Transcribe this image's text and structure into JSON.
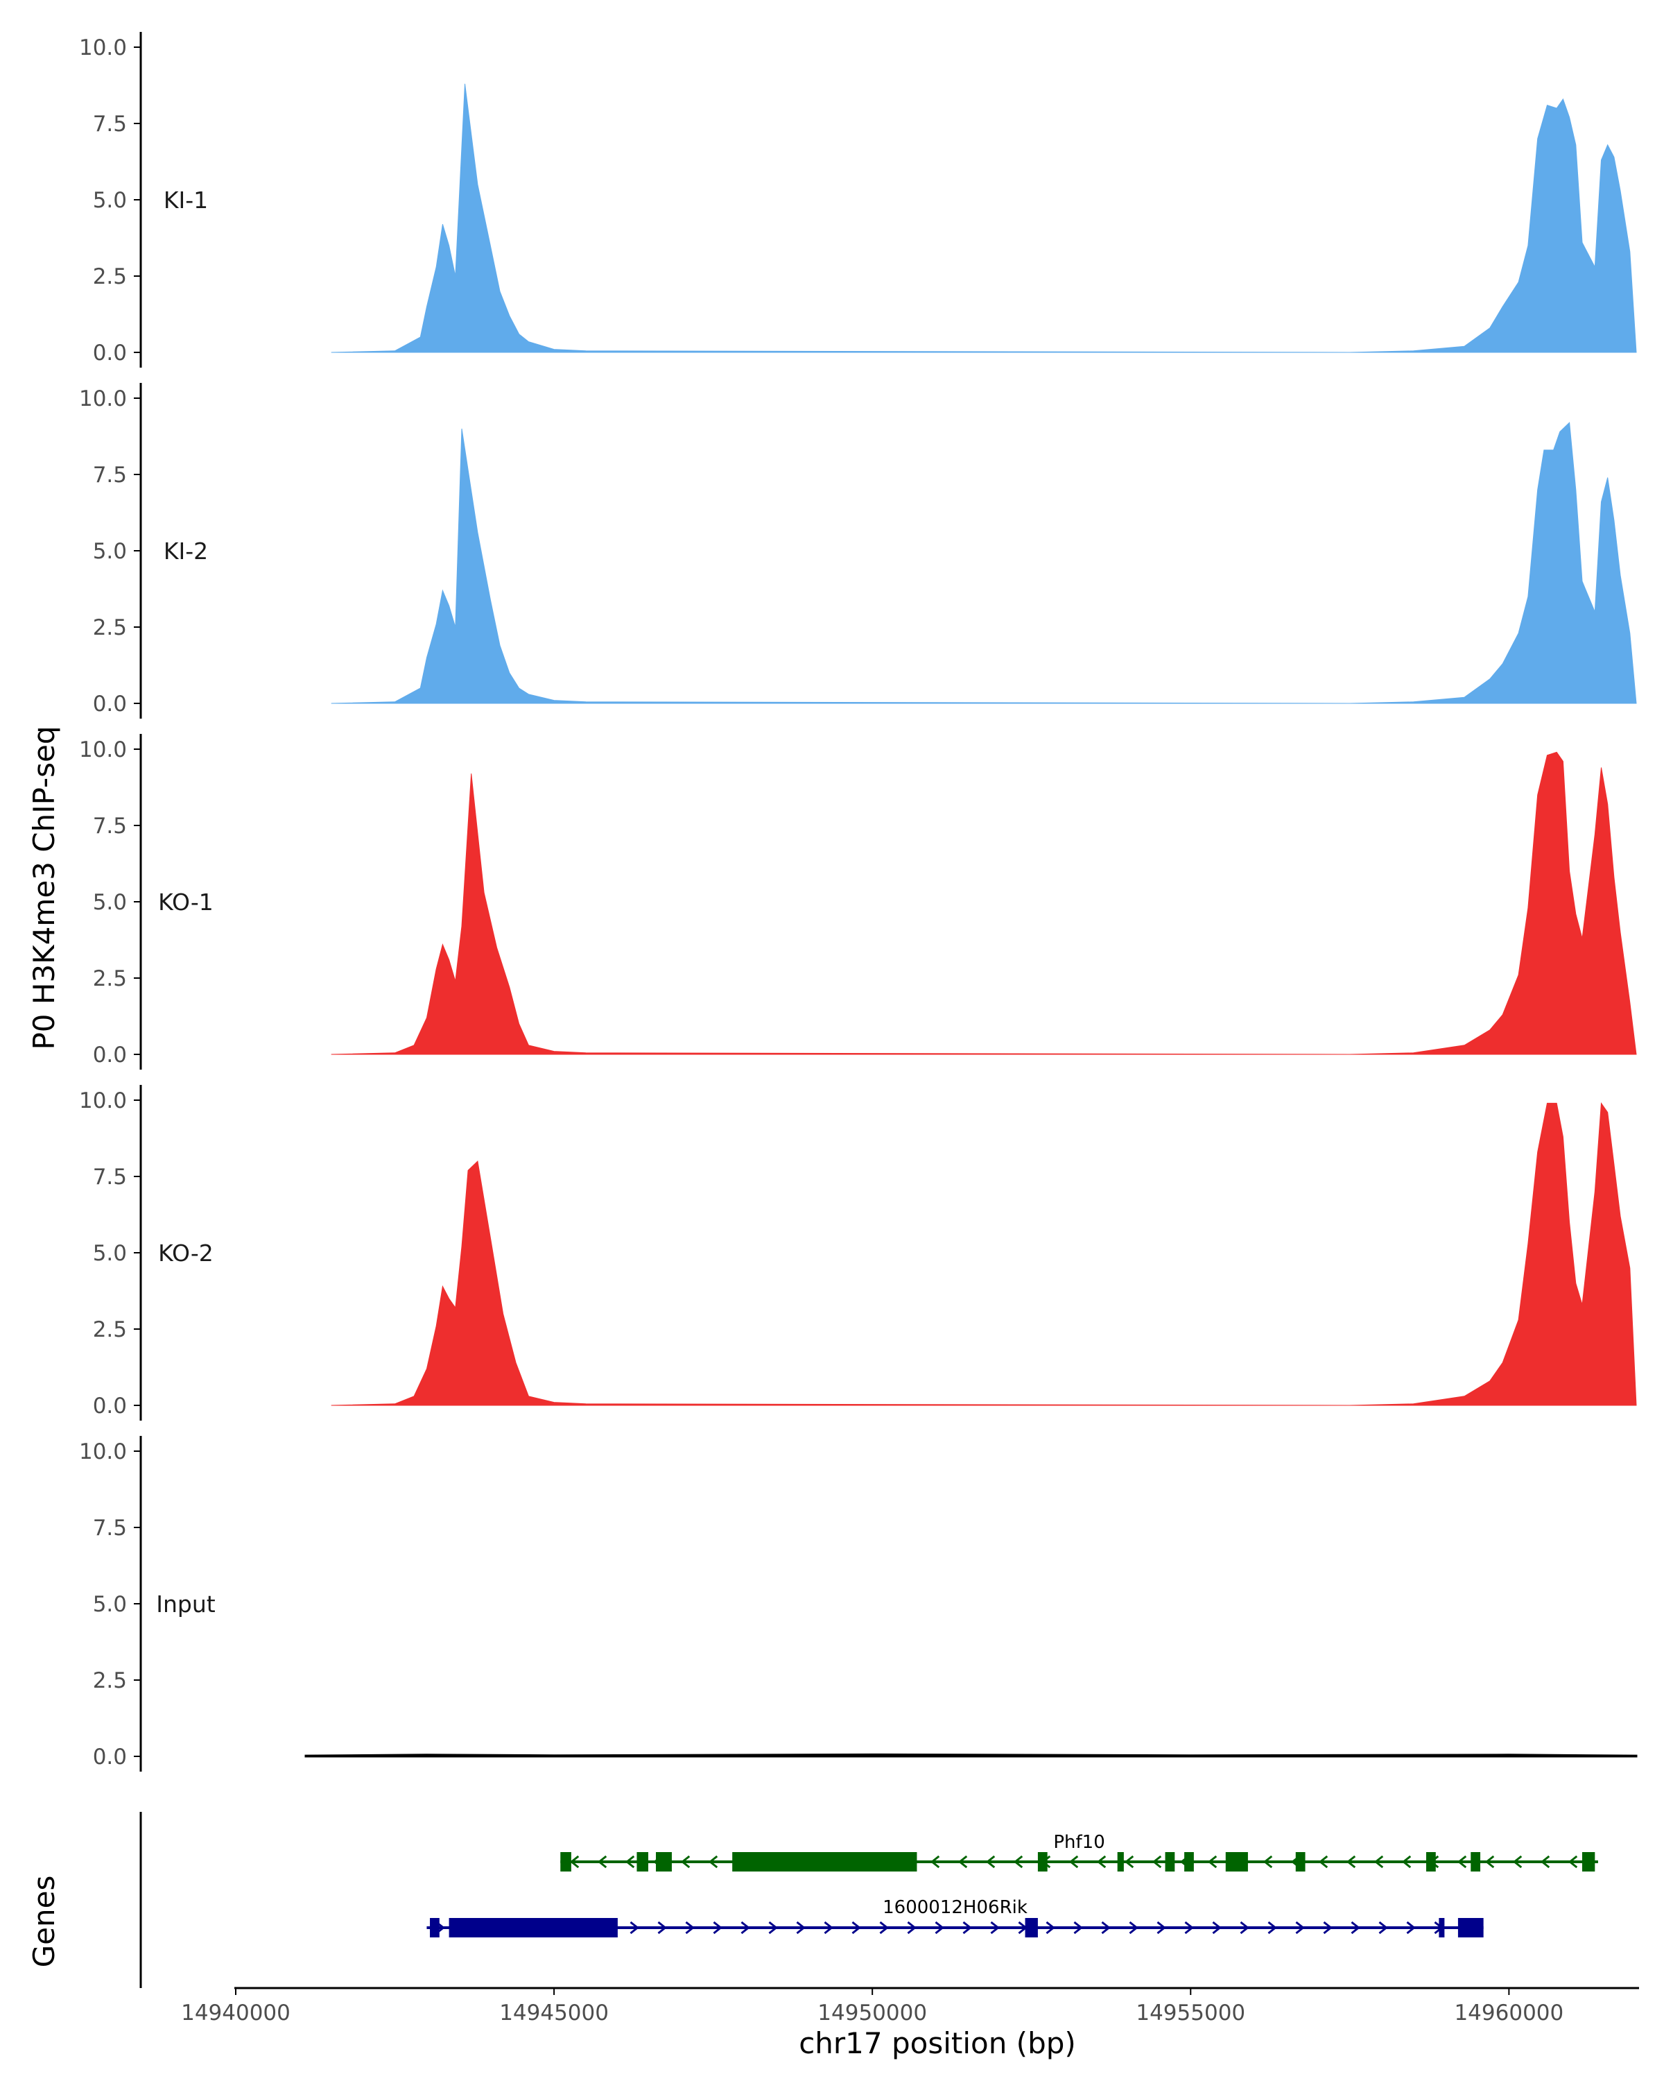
{
  "chart_data": {
    "type": "area",
    "ylabel": "P0 H3K4me3 ChIP-seq",
    "xlabel": "chr17 position (bp)",
    "ylim": [
      0,
      10
    ],
    "yticks": [
      "0.0",
      "2.5",
      "5.0",
      "7.5",
      "10.0"
    ],
    "xlim": [
      14940000,
      14962000
    ],
    "xticks": [
      {
        "value": 14940000,
        "label": "14940000"
      },
      {
        "value": 14945000,
        "label": "14945000"
      },
      {
        "value": 14950000,
        "label": "14950000"
      },
      {
        "value": 14955000,
        "label": "14955000"
      },
      {
        "value": 14960000,
        "label": "14960000"
      }
    ],
    "colors": {
      "KI": "#60ABEB",
      "KO": "#EE2E2E",
      "Input": "#000000",
      "Phf10": "#006400",
      "Rik": "#00008B",
      "axis": "#000000"
    },
    "series": [
      {
        "name": "KI-1",
        "color": "#60ABEB",
        "x": [
          14941500,
          14942500,
          14942900,
          14943000,
          14943150,
          14943250,
          14943350,
          14943450,
          14943600,
          14943800,
          14944000,
          14944150,
          14944300,
          14944450,
          14944600,
          14945000,
          14945500,
          14957500,
          14958500,
          14959300,
          14959700,
          14959900,
          14960150,
          14960300,
          14960450,
          14960600,
          14960750,
          14960850,
          14960950,
          14961050,
          14961150,
          14961350,
          14961450,
          14961550,
          14961650,
          14961750,
          14961900,
          14962000
        ],
        "y": [
          0,
          0.05,
          0.5,
          1.5,
          2.8,
          4.2,
          3.5,
          2.5,
          8.8,
          5.5,
          3.5,
          2.0,
          1.2,
          0.6,
          0.35,
          0.1,
          0.05,
          0,
          0.05,
          0.2,
          0.8,
          1.5,
          2.3,
          3.5,
          7.0,
          8.1,
          8.0,
          8.3,
          7.7,
          6.8,
          3.6,
          2.8,
          6.3,
          6.8,
          6.4,
          5.3,
          3.3,
          0
        ]
      },
      {
        "name": "KI-2",
        "color": "#60ABEB",
        "x": [
          14941500,
          14942500,
          14942900,
          14943000,
          14943150,
          14943250,
          14943350,
          14943450,
          14943550,
          14943800,
          14944000,
          14944150,
          14944300,
          14944450,
          14944600,
          14945000,
          14945500,
          14957500,
          14958500,
          14959300,
          14959700,
          14959900,
          14960150,
          14960300,
          14960450,
          14960550,
          14960700,
          14960800,
          14960950,
          14961050,
          14961150,
          14961350,
          14961450,
          14961550,
          14961650,
          14961750,
          14961900,
          14962000
        ],
        "y": [
          0,
          0.05,
          0.5,
          1.5,
          2.6,
          3.7,
          3.2,
          2.5,
          9.0,
          5.6,
          3.4,
          1.9,
          1.0,
          0.5,
          0.3,
          0.1,
          0.05,
          0,
          0.05,
          0.2,
          0.8,
          1.3,
          2.3,
          3.5,
          7.0,
          8.3,
          8.3,
          8.9,
          9.2,
          7.0,
          4.0,
          3.0,
          6.6,
          7.4,
          6.0,
          4.2,
          2.3,
          0
        ]
      },
      {
        "name": "KO-1",
        "color": "#EE2E2E",
        "x": [
          14941500,
          14942500,
          14942800,
          14943000,
          14943150,
          14943250,
          14943350,
          14943450,
          14943550,
          14943700,
          14943900,
          14944100,
          14944300,
          14944450,
          14944600,
          14945000,
          14945500,
          14957500,
          14958500,
          14959300,
          14959700,
          14959900,
          14960150,
          14960300,
          14960450,
          14960600,
          14960750,
          14960850,
          14960950,
          14961050,
          14961150,
          14961350,
          14961450,
          14961550,
          14961650,
          14961750,
          14961900,
          14962000
        ],
        "y": [
          0,
          0.05,
          0.3,
          1.2,
          2.8,
          3.6,
          3.1,
          2.4,
          4.2,
          9.2,
          5.3,
          3.5,
          2.2,
          1.0,
          0.3,
          0.1,
          0.05,
          0,
          0.05,
          0.3,
          0.8,
          1.3,
          2.6,
          4.8,
          8.5,
          9.8,
          9.9,
          9.6,
          6.0,
          4.6,
          3.8,
          7.2,
          9.4,
          8.2,
          5.8,
          4.0,
          1.7,
          0
        ]
      },
      {
        "name": "KO-2",
        "color": "#EE2E2E",
        "x": [
          14941500,
          14942500,
          14942800,
          14943000,
          14943150,
          14943250,
          14943350,
          14943450,
          14943550,
          14943650,
          14943800,
          14944000,
          14944200,
          14944400,
          14944600,
          14945000,
          14945500,
          14957500,
          14958500,
          14959300,
          14959700,
          14959900,
          14960150,
          14960300,
          14960450,
          14960600,
          14960750,
          14960850,
          14960950,
          14961050,
          14961150,
          14961350,
          14961450,
          14961550,
          14961650,
          14961750,
          14961900,
          14962000
        ],
        "y": [
          0,
          0.05,
          0.3,
          1.2,
          2.6,
          3.9,
          3.5,
          3.2,
          5.2,
          7.7,
          8.0,
          5.5,
          3.0,
          1.4,
          0.3,
          0.1,
          0.05,
          0,
          0.05,
          0.3,
          0.8,
          1.4,
          2.8,
          5.3,
          8.3,
          9.9,
          9.9,
          8.8,
          6.0,
          4.0,
          3.3,
          7.0,
          9.9,
          9.6,
          7.9,
          6.2,
          4.5,
          0
        ]
      },
      {
        "name": "Input",
        "color": "#000000",
        "x": [
          14941100,
          14943000,
          14945000,
          14950000,
          14955000,
          14960000,
          14962000
        ],
        "y": [
          0.02,
          0.05,
          0.03,
          0.06,
          0.03,
          0.05,
          0.02
        ]
      }
    ],
    "genes": [
      {
        "name": "Phf10",
        "strand": "-",
        "color": "#006400",
        "start": 14945100,
        "end": 14961400,
        "exons": [
          [
            14945100,
            14945270
          ],
          [
            14946300,
            14946480
          ],
          [
            14946600,
            14946850
          ],
          [
            14947800,
            14950700
          ],
          [
            14952600,
            14952750
          ],
          [
            14953850,
            14953950
          ],
          [
            14954600,
            14954750
          ],
          [
            14954900,
            14955050
          ],
          [
            14955550,
            14955900
          ],
          [
            14956650,
            14956800
          ],
          [
            14958700,
            14958850
          ],
          [
            14959400,
            14959550
          ],
          [
            14961150,
            14961350
          ]
        ]
      },
      {
        "name": "1600012H06Rik",
        "strand": "+",
        "color": "#00008B",
        "start": 14943000,
        "end": 14959600,
        "exons": [
          [
            14943050,
            14943200
          ],
          [
            14943350,
            14946000
          ],
          [
            14952400,
            14952600
          ],
          [
            14958900,
            14958950
          ],
          [
            14959200,
            14959600
          ]
        ]
      }
    ]
  }
}
